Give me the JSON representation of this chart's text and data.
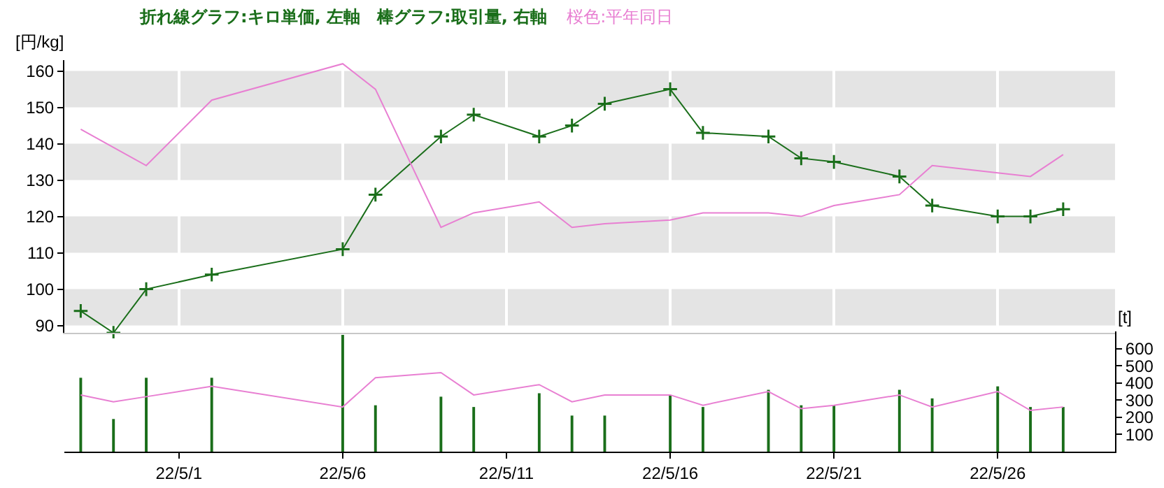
{
  "chart_data": [
    {
      "type": "line",
      "title": "折れ線グラフ:キロ単価, 左軸　棒グラフ:取引量, 右軸",
      "subtitle": "桜色:平年同日",
      "ylabel": "[円/kg]",
      "x": [
        "--04-28",
        "--04-29",
        "--04-30",
        "--05-02",
        "--05-06",
        "--05-07",
        "--05-09",
        "--05-10",
        "--05-12",
        "--05-13",
        "--05-14",
        "--05-16",
        "--05-17",
        "--05-19",
        "--05-20",
        "--05-21",
        "--05-23",
        "--05-24",
        "--05-26",
        "--05-27",
        "--05-28"
      ],
      "series": [
        {
          "color": "#1a6e1a",
          "marker": "cross",
          "values": [
            94,
            88,
            100,
            104,
            111,
            126,
            142,
            148,
            142,
            145,
            151,
            155,
            143,
            142,
            136,
            135,
            131,
            123,
            120,
            120,
            122
          ]
        },
        {
          "color": "#e87fd2",
          "marker": "none",
          "values": [
            144,
            139,
            134,
            152,
            162,
            155,
            117,
            121,
            124,
            117,
            118,
            119,
            121,
            121,
            120,
            123,
            126,
            134,
            132,
            131,
            137
          ]
        }
      ],
      "xlim": [
        "--04-27T12:00",
        "--05-29T14:00"
      ],
      "xticks": [
        {
          "value": "--05-01",
          "label": "22/5/1"
        },
        {
          "value": "--05-06",
          "label": "22/5/6"
        },
        {
          "value": "--05-11",
          "label": "22/5/11"
        },
        {
          "value": "--05-16",
          "label": "22/5/16"
        },
        {
          "value": "--05-21",
          "label": "22/5/21"
        },
        {
          "value": "--05-26",
          "label": "22/5/26"
        }
      ],
      "ylim": [
        88,
        163
      ],
      "yticks": [
        90,
        100,
        110,
        120,
        130,
        140,
        150,
        160
      ],
      "grid": true,
      "tick_labels": "y"
    },
    {
      "type": "bar",
      "y2label": "[t]",
      "x": [
        "--04-28",
        "--04-29",
        "--04-30",
        "--05-02",
        "--05-06",
        "--05-07",
        "--05-09",
        "--05-10",
        "--05-12",
        "--05-13",
        "--05-14",
        "--05-16",
        "--05-17",
        "--05-19",
        "--05-20",
        "--05-21",
        "--05-23",
        "--05-24",
        "--05-26",
        "--05-27",
        "--05-28"
      ],
      "series": [
        {
          "type": "bar",
          "axis": "y2",
          "color": "#1a6e1a",
          "values": [
            430,
            190,
            430,
            430,
            680,
            270,
            320,
            260,
            340,
            210,
            210,
            330,
            260,
            360,
            270,
            270,
            360,
            310,
            380,
            260,
            260
          ]
        },
        {
          "type": "line",
          "axis": "y2",
          "color": "#e87fd2",
          "values": [
            330,
            290,
            320,
            380,
            260,
            430,
            460,
            330,
            390,
            290,
            330,
            330,
            270,
            350,
            250,
            270,
            330,
            260,
            350,
            240,
            260
          ]
        }
      ],
      "xlim": [
        "--04-27T12:00",
        "--05-29T14:00"
      ],
      "xticks": [
        {
          "value": "--05-01",
          "label": "22/5/1"
        },
        {
          "value": "--05-06",
          "label": "22/5/6"
        },
        {
          "value": "--05-11",
          "label": "22/5/11"
        },
        {
          "value": "--05-16",
          "label": "22/5/16"
        },
        {
          "value": "--05-21",
          "label": "22/5/21"
        },
        {
          "value": "--05-26",
          "label": "22/5/26"
        }
      ],
      "y2lim": [
        0,
        700
      ],
      "y2ticks": [
        100,
        200,
        300,
        400,
        500,
        600
      ],
      "grid": false
    }
  ]
}
